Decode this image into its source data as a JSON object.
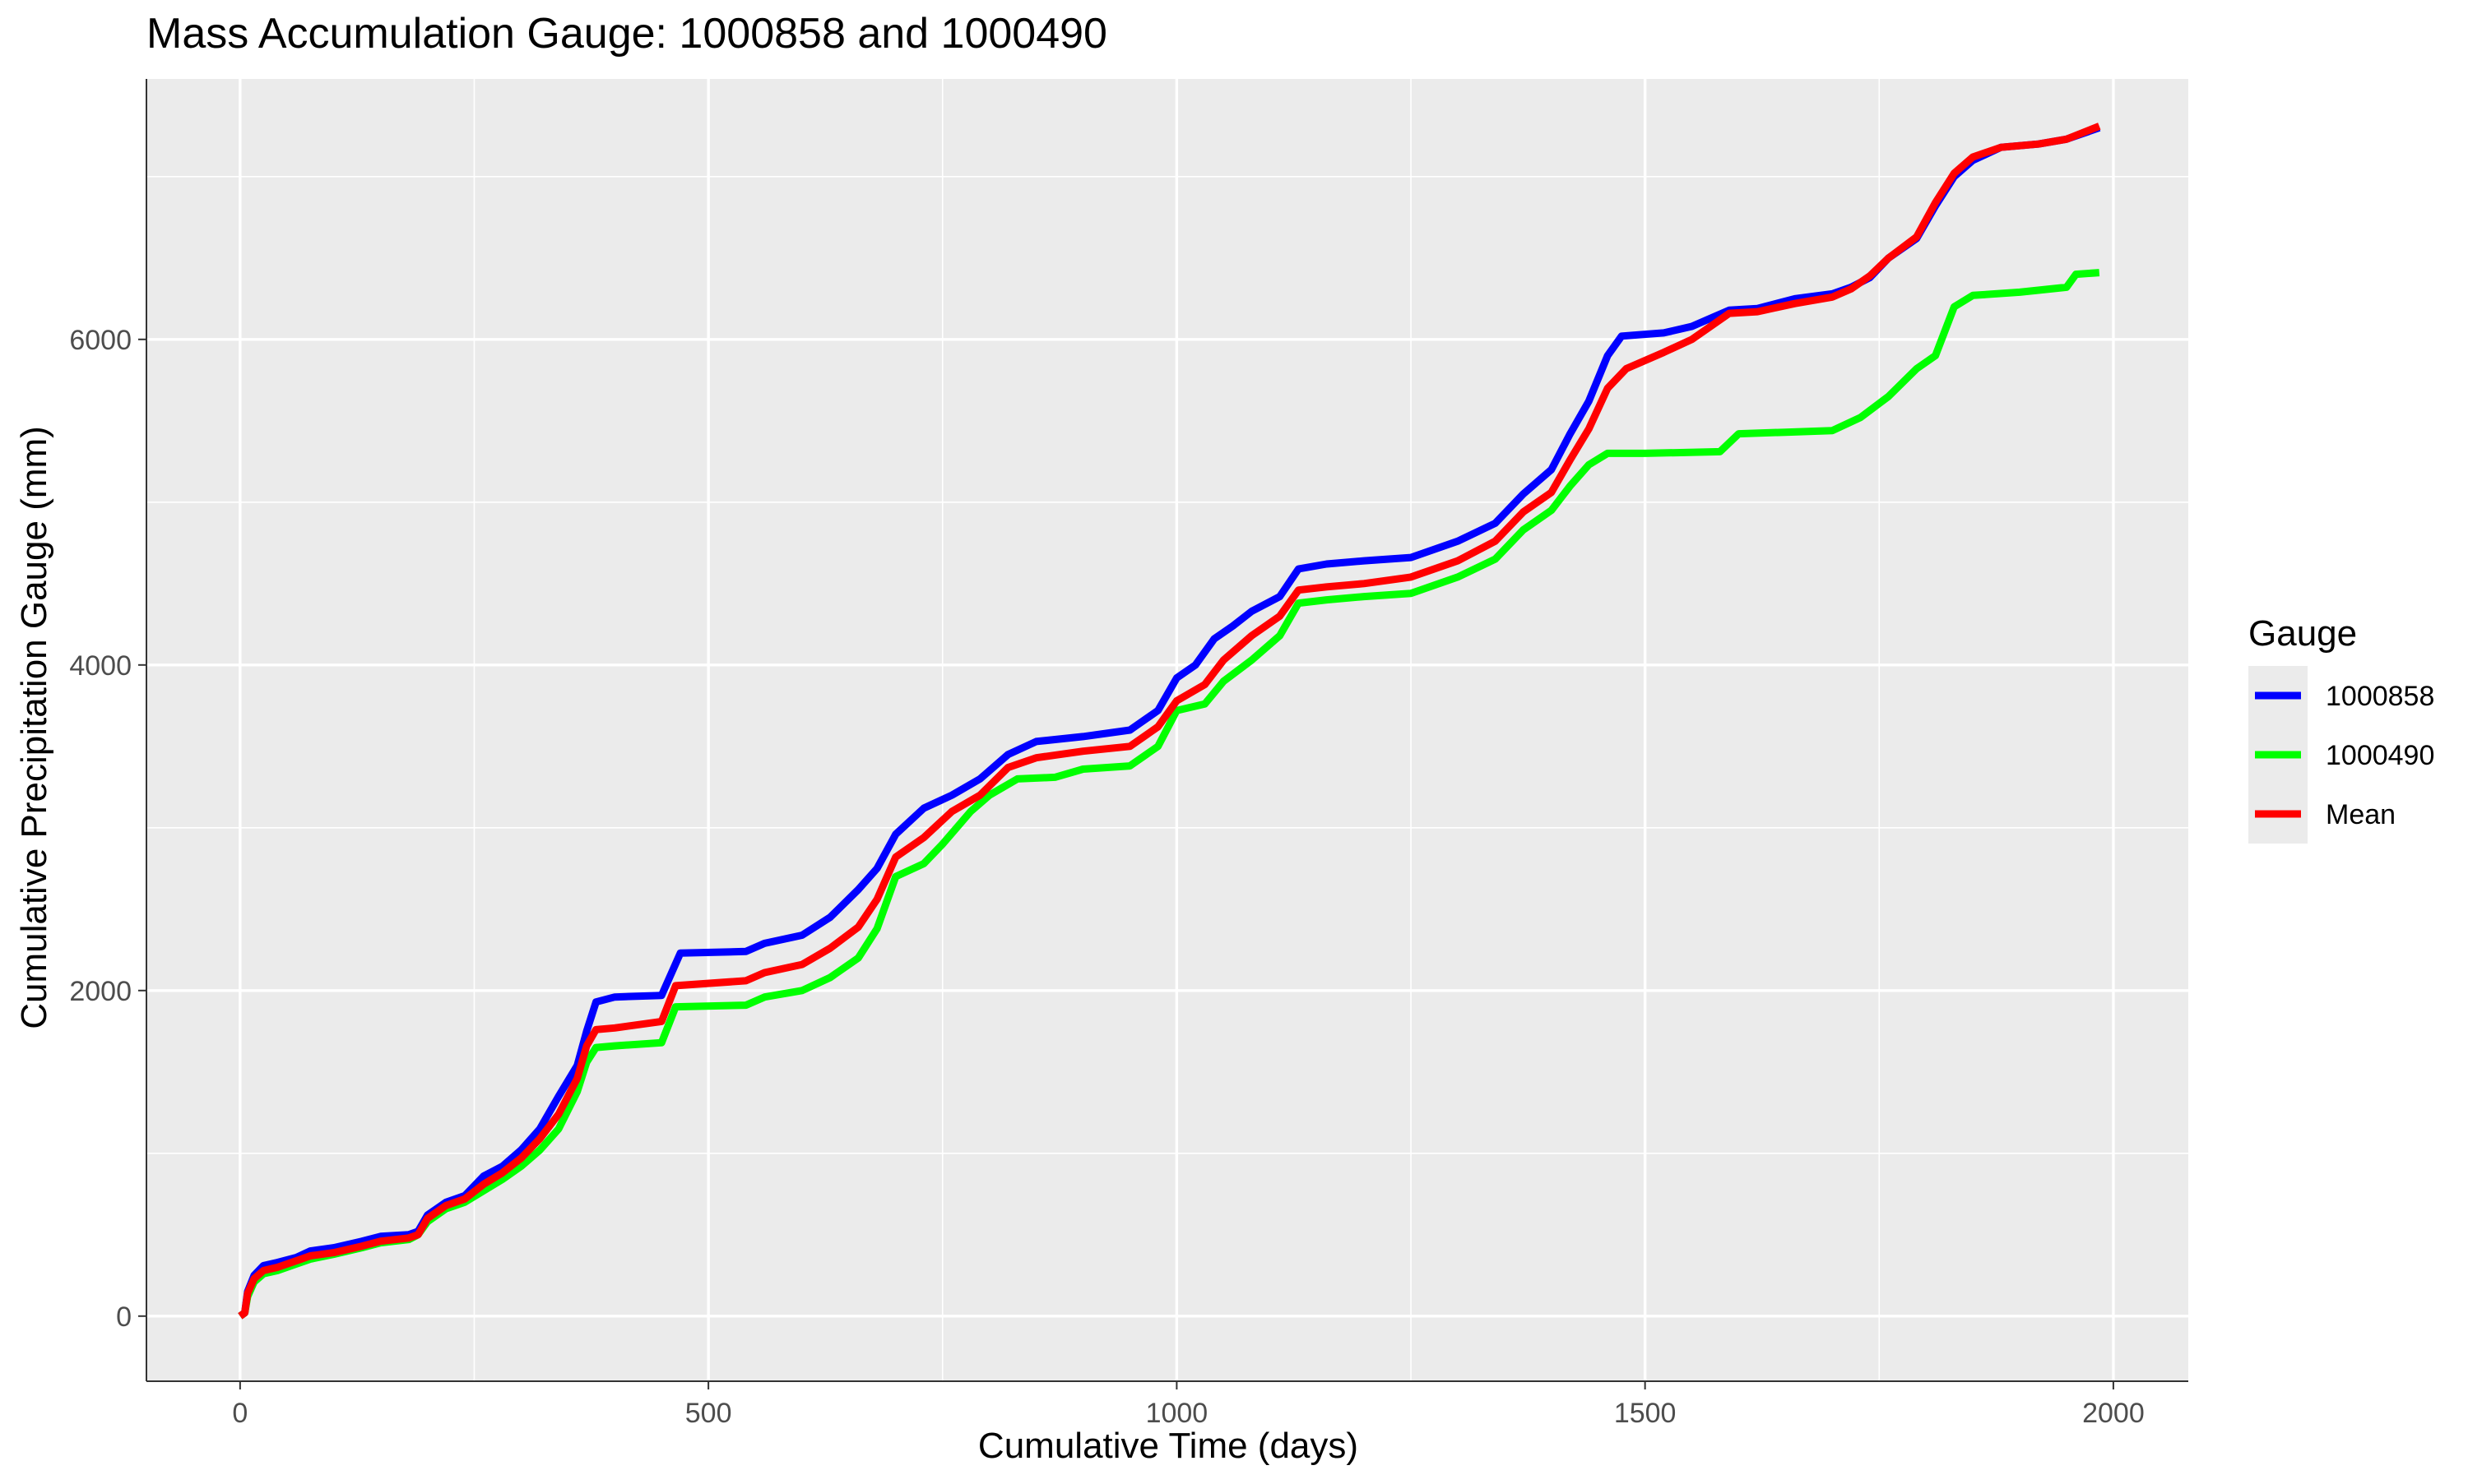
{
  "chart_data": {
    "type": "line",
    "title": "Mass Accumulation Gauge: 1000858 and 1000490",
    "xlabel": "Cumulative Time (days)",
    "ylabel": "Cumulative Precipitation Gauge (mm)",
    "xlim": [
      -100,
      2080
    ],
    "ylim": [
      -400,
      7600
    ],
    "x_ticks": [
      0,
      500,
      1000,
      1500,
      2000
    ],
    "y_ticks": [
      0,
      2000,
      4000,
      6000
    ],
    "grid": true,
    "background": "#EBEBEB",
    "legend": {
      "title": "Gauge",
      "position": "right"
    },
    "series": [
      {
        "name": "1000858",
        "color": "#0000FF",
        "points": [
          [
            0,
            0
          ],
          [
            5,
            20
          ],
          [
            8,
            150
          ],
          [
            15,
            250
          ],
          [
            25,
            310
          ],
          [
            40,
            330
          ],
          [
            60,
            360
          ],
          [
            75,
            400
          ],
          [
            100,
            420
          ],
          [
            130,
            460
          ],
          [
            150,
            490
          ],
          [
            180,
            500
          ],
          [
            190,
            520
          ],
          [
            200,
            620
          ],
          [
            220,
            700
          ],
          [
            240,
            740
          ],
          [
            260,
            860
          ],
          [
            280,
            920
          ],
          [
            300,
            1020
          ],
          [
            320,
            1150
          ],
          [
            340,
            1350
          ],
          [
            360,
            1540
          ],
          [
            370,
            1750
          ],
          [
            380,
            1930
          ],
          [
            400,
            1960
          ],
          [
            450,
            1970
          ],
          [
            470,
            2230
          ],
          [
            540,
            2240
          ],
          [
            560,
            2290
          ],
          [
            600,
            2340
          ],
          [
            630,
            2450
          ],
          [
            660,
            2620
          ],
          [
            680,
            2750
          ],
          [
            700,
            2960
          ],
          [
            730,
            3120
          ],
          [
            760,
            3200
          ],
          [
            790,
            3300
          ],
          [
            820,
            3450
          ],
          [
            850,
            3530
          ],
          [
            900,
            3560
          ],
          [
            950,
            3600
          ],
          [
            980,
            3720
          ],
          [
            1000,
            3920
          ],
          [
            1020,
            4000
          ],
          [
            1040,
            4160
          ],
          [
            1060,
            4240
          ],
          [
            1080,
            4330
          ],
          [
            1110,
            4420
          ],
          [
            1130,
            4590
          ],
          [
            1160,
            4620
          ],
          [
            1200,
            4640
          ],
          [
            1250,
            4660
          ],
          [
            1300,
            4760
          ],
          [
            1340,
            4870
          ],
          [
            1370,
            5050
          ],
          [
            1400,
            5200
          ],
          [
            1420,
            5420
          ],
          [
            1440,
            5620
          ],
          [
            1460,
            5900
          ],
          [
            1475,
            6020
          ],
          [
            1520,
            6040
          ],
          [
            1550,
            6080
          ],
          [
            1590,
            6180
          ],
          [
            1620,
            6190
          ],
          [
            1660,
            6250
          ],
          [
            1700,
            6280
          ],
          [
            1720,
            6320
          ],
          [
            1740,
            6380
          ],
          [
            1760,
            6500
          ],
          [
            1790,
            6620
          ],
          [
            1810,
            6820
          ],
          [
            1830,
            7000
          ],
          [
            1850,
            7100
          ],
          [
            1880,
            7180
          ],
          [
            1920,
            7200
          ],
          [
            1950,
            7230
          ],
          [
            1985,
            7300
          ]
        ]
      },
      {
        "name": "1000490",
        "color": "#00FF00",
        "points": [
          [
            0,
            0
          ],
          [
            5,
            20
          ],
          [
            8,
            120
          ],
          [
            15,
            210
          ],
          [
            25,
            260
          ],
          [
            40,
            280
          ],
          [
            60,
            320
          ],
          [
            75,
            350
          ],
          [
            100,
            380
          ],
          [
            130,
            420
          ],
          [
            150,
            450
          ],
          [
            180,
            470
          ],
          [
            190,
            500
          ],
          [
            200,
            580
          ],
          [
            220,
            660
          ],
          [
            240,
            700
          ],
          [
            260,
            770
          ],
          [
            280,
            840
          ],
          [
            300,
            920
          ],
          [
            320,
            1020
          ],
          [
            340,
            1150
          ],
          [
            360,
            1380
          ],
          [
            370,
            1560
          ],
          [
            380,
            1650
          ],
          [
            400,
            1660
          ],
          [
            450,
            1680
          ],
          [
            465,
            1900
          ],
          [
            540,
            1910
          ],
          [
            560,
            1960
          ],
          [
            600,
            2000
          ],
          [
            630,
            2080
          ],
          [
            660,
            2200
          ],
          [
            680,
            2380
          ],
          [
            700,
            2700
          ],
          [
            730,
            2780
          ],
          [
            750,
            2900
          ],
          [
            780,
            3100
          ],
          [
            800,
            3200
          ],
          [
            830,
            3300
          ],
          [
            870,
            3310
          ],
          [
            900,
            3360
          ],
          [
            950,
            3380
          ],
          [
            980,
            3500
          ],
          [
            1000,
            3720
          ],
          [
            1030,
            3760
          ],
          [
            1050,
            3900
          ],
          [
            1080,
            4030
          ],
          [
            1110,
            4180
          ],
          [
            1130,
            4380
          ],
          [
            1160,
            4400
          ],
          [
            1200,
            4420
          ],
          [
            1250,
            4440
          ],
          [
            1300,
            4540
          ],
          [
            1340,
            4650
          ],
          [
            1370,
            4830
          ],
          [
            1400,
            4950
          ],
          [
            1420,
            5100
          ],
          [
            1440,
            5230
          ],
          [
            1460,
            5300
          ],
          [
            1500,
            5300
          ],
          [
            1580,
            5310
          ],
          [
            1600,
            5420
          ],
          [
            1650,
            5430
          ],
          [
            1700,
            5440
          ],
          [
            1730,
            5520
          ],
          [
            1760,
            5650
          ],
          [
            1790,
            5820
          ],
          [
            1810,
            5900
          ],
          [
            1830,
            6200
          ],
          [
            1850,
            6270
          ],
          [
            1900,
            6290
          ],
          [
            1950,
            6320
          ],
          [
            1960,
            6400
          ],
          [
            1985,
            6410
          ]
        ]
      },
      {
        "name": "Mean",
        "color": "#FF0000",
        "points": [
          [
            0,
            0
          ],
          [
            5,
            20
          ],
          [
            8,
            140
          ],
          [
            15,
            230
          ],
          [
            25,
            280
          ],
          [
            40,
            300
          ],
          [
            60,
            340
          ],
          [
            75,
            370
          ],
          [
            100,
            390
          ],
          [
            130,
            430
          ],
          [
            150,
            460
          ],
          [
            180,
            480
          ],
          [
            190,
            500
          ],
          [
            200,
            600
          ],
          [
            220,
            680
          ],
          [
            240,
            720
          ],
          [
            260,
            810
          ],
          [
            280,
            880
          ],
          [
            300,
            970
          ],
          [
            320,
            1090
          ],
          [
            340,
            1240
          ],
          [
            360,
            1460
          ],
          [
            370,
            1660
          ],
          [
            380,
            1760
          ],
          [
            400,
            1770
          ],
          [
            450,
            1810
          ],
          [
            465,
            2030
          ],
          [
            540,
            2060
          ],
          [
            560,
            2110
          ],
          [
            600,
            2160
          ],
          [
            630,
            2260
          ],
          [
            660,
            2390
          ],
          [
            680,
            2560
          ],
          [
            700,
            2820
          ],
          [
            730,
            2940
          ],
          [
            760,
            3100
          ],
          [
            790,
            3200
          ],
          [
            820,
            3370
          ],
          [
            850,
            3430
          ],
          [
            900,
            3470
          ],
          [
            950,
            3500
          ],
          [
            980,
            3620
          ],
          [
            1000,
            3780
          ],
          [
            1030,
            3880
          ],
          [
            1050,
            4030
          ],
          [
            1080,
            4180
          ],
          [
            1110,
            4300
          ],
          [
            1130,
            4460
          ],
          [
            1160,
            4480
          ],
          [
            1200,
            4500
          ],
          [
            1250,
            4540
          ],
          [
            1300,
            4640
          ],
          [
            1340,
            4760
          ],
          [
            1370,
            4940
          ],
          [
            1400,
            5060
          ],
          [
            1420,
            5260
          ],
          [
            1440,
            5450
          ],
          [
            1460,
            5700
          ],
          [
            1480,
            5820
          ],
          [
            1520,
            5920
          ],
          [
            1550,
            6000
          ],
          [
            1590,
            6160
          ],
          [
            1620,
            6170
          ],
          [
            1660,
            6220
          ],
          [
            1700,
            6260
          ],
          [
            1720,
            6310
          ],
          [
            1740,
            6390
          ],
          [
            1760,
            6500
          ],
          [
            1790,
            6630
          ],
          [
            1810,
            6840
          ],
          [
            1830,
            7020
          ],
          [
            1850,
            7120
          ],
          [
            1880,
            7180
          ],
          [
            1920,
            7200
          ],
          [
            1950,
            7230
          ],
          [
            1985,
            7310
          ]
        ]
      }
    ]
  }
}
